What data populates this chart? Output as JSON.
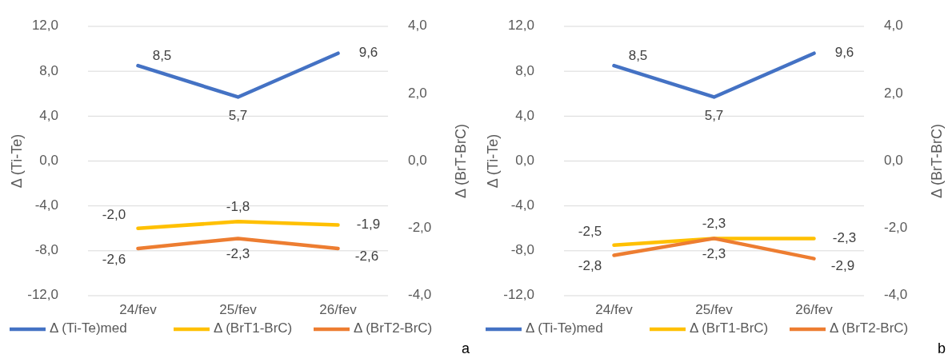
{
  "chart_data": [
    {
      "type": "line",
      "ylabel": "Δ (Ti-Te)",
      "y2label": "Δ (BrT-BrC)",
      "categories": [
        "24/fev",
        "25/fev",
        "26/fev"
      ],
      "ylim": [
        -12,
        12
      ],
      "yticks": [
        {
          "value": -12,
          "label": "-12,0"
        },
        {
          "value": -8,
          "label": "-8,0"
        },
        {
          "value": -4,
          "label": "-4,0"
        },
        {
          "value": 0,
          "label": "0,0"
        },
        {
          "value": 4,
          "label": "4,0"
        },
        {
          "value": 8,
          "label": "8,0"
        },
        {
          "value": 12,
          "label": "12,0"
        }
      ],
      "y2lim": [
        -4,
        4
      ],
      "y2ticks": [
        {
          "value": -4,
          "label": "-4,0"
        },
        {
          "value": -2,
          "label": "-2,0"
        },
        {
          "value": 0,
          "label": "0,0"
        },
        {
          "value": 2,
          "label": "2,0"
        },
        {
          "value": 4,
          "label": "4,0"
        }
      ],
      "grid": "y",
      "legend": "bottom",
      "marker": "none",
      "line_style": "solid",
      "annotations": [
        "a"
      ],
      "series": [
        {
          "name": "Δ (Ti-Te)med",
          "color": "#4472c4",
          "values": [
            8.5,
            5.7,
            9.6
          ],
          "value_labels": [
            "8,5",
            "5,7",
            "9,6"
          ]
        },
        {
          "name": "Δ (BrT1-BrC)",
          "color": "#ffc000",
          "axis": "y2",
          "values": [
            -2.0,
            -1.8,
            -1.9
          ],
          "value_labels": [
            "-2,0",
            "-1,8",
            "-1,9"
          ]
        },
        {
          "name": "Δ (BrT2-BrC)",
          "color": "#ed7d31",
          "axis": "y2",
          "values": [
            -2.6,
            -2.3,
            -2.6
          ],
          "value_labels": [
            "-2,6",
            "-2,3",
            "-2,6"
          ]
        }
      ]
    },
    {
      "type": "line",
      "ylabel": "Δ (Ti-Te)",
      "y2label": "Δ (BrT-BrC)",
      "categories": [
        "24/fev",
        "25/fev",
        "26/fev"
      ],
      "ylim": [
        -12,
        12
      ],
      "yticks": [
        {
          "value": -12,
          "label": "-12,0"
        },
        {
          "value": -8,
          "label": "-8,0"
        },
        {
          "value": -4,
          "label": "-4,0"
        },
        {
          "value": 0,
          "label": "0,0"
        },
        {
          "value": 4,
          "label": "4,0"
        },
        {
          "value": 8,
          "label": "8,0"
        },
        {
          "value": 12,
          "label": "12,0"
        }
      ],
      "y2lim": [
        -4,
        4
      ],
      "y2ticks": [
        {
          "value": -4,
          "label": "-4,0"
        },
        {
          "value": -2,
          "label": "-2,0"
        },
        {
          "value": 0,
          "label": "0,0"
        },
        {
          "value": 2,
          "label": "2,0"
        },
        {
          "value": 4,
          "label": "4,0"
        }
      ],
      "grid": "y",
      "legend": "bottom",
      "marker": "none",
      "line_style": "solid",
      "annotations": [
        "b"
      ],
      "series": [
        {
          "name": "Δ (Ti-Te)med",
          "color": "#4472c4",
          "values": [
            8.5,
            5.7,
            9.6
          ],
          "value_labels": [
            "8,5",
            "5,7",
            "9,6"
          ]
        },
        {
          "name": "Δ (BrT1-BrC)",
          "color": "#ffc000",
          "axis": "y2",
          "values": [
            -2.5,
            -2.3,
            -2.3
          ],
          "value_labels": [
            "-2,5",
            "-2,3",
            "-2,3"
          ]
        },
        {
          "name": "Δ (BrT2-BrC)",
          "color": "#ed7d31",
          "axis": "y2",
          "values": [
            -2.8,
            -2.3,
            -2.9
          ],
          "value_labels": [
            "-2,8",
            "-2,3",
            "-2,9"
          ]
        }
      ]
    }
  ]
}
